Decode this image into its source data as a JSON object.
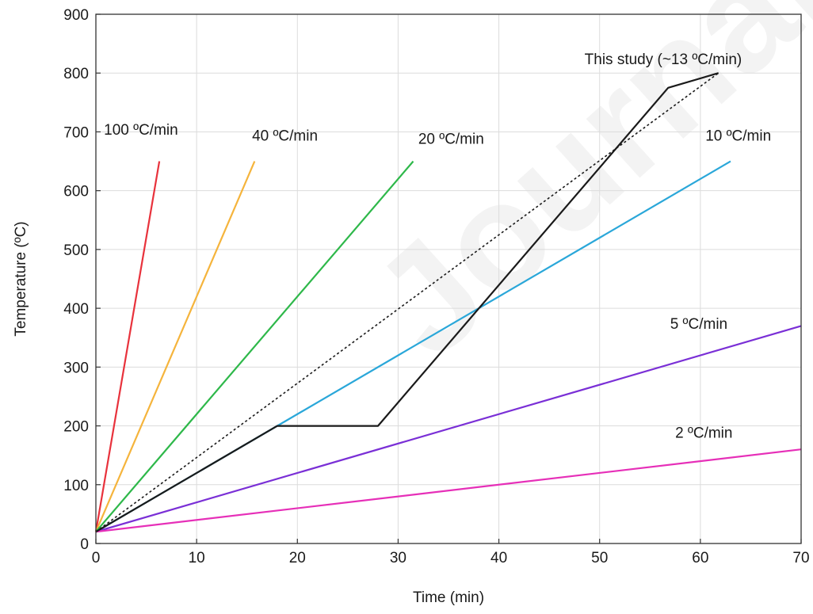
{
  "watermark": "Journal Pre-proof",
  "chart_data": {
    "type": "line",
    "xlabel": "Time (min)",
    "ylabel": "Temperature (ºC)",
    "xlim": [
      0,
      70
    ],
    "ylim": [
      0,
      900
    ],
    "xticks": [
      0,
      10,
      20,
      30,
      40,
      50,
      60,
      70
    ],
    "yticks": [
      0,
      100,
      200,
      300,
      400,
      500,
      600,
      700,
      800,
      900
    ],
    "grid": true,
    "series": [
      {
        "name": "100 ºC/min",
        "color": "#e8323c",
        "dash": "solid",
        "points": [
          [
            0,
            20
          ],
          [
            6.3,
            650
          ]
        ],
        "label_anchor": [
          0.8,
          695
        ]
      },
      {
        "name": "40 ºC/min",
        "color": "#f5b43c",
        "dash": "solid",
        "points": [
          [
            0,
            20
          ],
          [
            15.75,
            650
          ]
        ],
        "label_anchor": [
          15.5,
          685
        ]
      },
      {
        "name": "20 ºC/min",
        "color": "#2eb84a",
        "dash": "solid",
        "points": [
          [
            0,
            20
          ],
          [
            31.5,
            650
          ]
        ],
        "label_anchor": [
          32,
          680
        ]
      },
      {
        "name": "10 ºC/min",
        "color": "#2aa7d9",
        "dash": "solid",
        "points": [
          [
            0,
            20
          ],
          [
            63,
            650
          ]
        ],
        "label_anchor": [
          60.5,
          685
        ]
      },
      {
        "name": "5 ºC/min",
        "color": "#7a2fd6",
        "dash": "solid",
        "points": [
          [
            0,
            20
          ],
          [
            70,
            370
          ]
        ],
        "label_anchor": [
          57,
          365
        ]
      },
      {
        "name": "2 ºC/min",
        "color": "#e62fb8",
        "dash": "solid",
        "points": [
          [
            0,
            20
          ],
          [
            70,
            160
          ]
        ],
        "label_anchor": [
          57.5,
          180
        ]
      },
      {
        "name": "This study (~13 ºC/min)",
        "color": "#1a1a1a",
        "dash": "solid",
        "points": [
          [
            0,
            20
          ],
          [
            18,
            200
          ],
          [
            28,
            200
          ],
          [
            56.8,
            775
          ],
          [
            61.8,
            800
          ]
        ],
        "label_anchor": [
          48.5,
          815
        ]
      },
      {
        "name": "",
        "color": "#1a1a1a",
        "dash": "dotted",
        "points": [
          [
            0,
            20
          ],
          [
            61.8,
            800
          ]
        ],
        "label_anchor": null
      }
    ]
  }
}
